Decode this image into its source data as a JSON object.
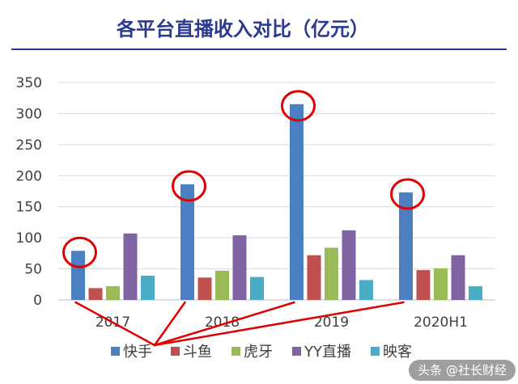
{
  "chart_data": {
    "type": "bar",
    "title": "各平台直播收入对比（亿元）",
    "xlabel": "",
    "ylabel": "",
    "ylim": [
      0,
      350
    ],
    "yticks": [
      0,
      50,
      100,
      150,
      200,
      250,
      300,
      350
    ],
    "categories": [
      "2017",
      "2018",
      "2019",
      "2020H1"
    ],
    "series": [
      {
        "name": "快手",
        "color": "#4a7fc1",
        "values": [
          79,
          186,
          315,
          173
        ]
      },
      {
        "name": "斗鱼",
        "color": "#c0504d",
        "values": [
          19,
          36,
          72,
          48
        ]
      },
      {
        "name": "虎牙",
        "color": "#9bbb59",
        "values": [
          22,
          47,
          84,
          51
        ]
      },
      {
        "name": "YY直播",
        "color": "#8064a2",
        "values": [
          107,
          104,
          112,
          72
        ]
      },
      {
        "name": "映客",
        "color": "#4bacc6",
        "values": [
          39,
          37,
          32,
          22
        ]
      }
    ],
    "highlighted_series": "快手",
    "grid": true,
    "legend_position": "bottom"
  },
  "watermark": {
    "text": "头条 @社长财经"
  },
  "colors": {
    "title": "#2b3a8f",
    "highlight": "#e00000",
    "grid": "#d9d9d9"
  }
}
